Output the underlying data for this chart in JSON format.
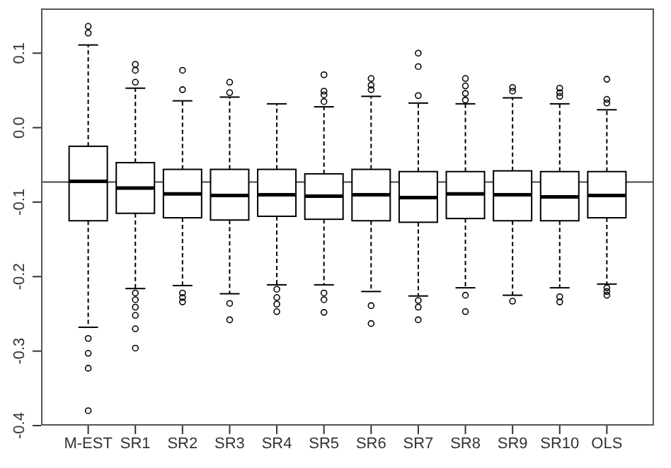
{
  "chart_data": {
    "type": "box",
    "categories": [
      "M-EST",
      "SR1",
      "SR2",
      "SR3",
      "SR4",
      "SR5",
      "SR6",
      "SR7",
      "SR8",
      "SR9",
      "SR10",
      "OLS"
    ],
    "ylim": [
      -0.4,
      0.16
    ],
    "yticks": [
      -0.4,
      -0.3,
      -0.2,
      -0.1,
      {
        "value": 0,
        "label": "0.0"
      },
      0.1
    ],
    "grid": false,
    "legend": false,
    "ref_lines": [
      {
        "axis": "y",
        "value": -0.073,
        "color": "#444444"
      }
    ],
    "series": [
      {
        "color": "#000000",
        "boxes": [
          {
            "low": -0.268,
            "q1": -0.125,
            "median": -0.072,
            "q3": -0.025,
            "high": 0.111,
            "outliers": [
              0.136,
              0.127,
              -0.283,
              -0.303,
              -0.323,
              -0.38
            ]
          },
          {
            "low": -0.216,
            "q1": -0.115,
            "median": -0.081,
            "q3": -0.047,
            "high": 0.053,
            "outliers": [
              0.085,
              0.077,
              0.061,
              -0.222,
              -0.231,
              -0.241,
              -0.252,
              -0.27,
              -0.296
            ]
          },
          {
            "low": -0.212,
            "q1": -0.121,
            "median": -0.089,
            "q3": -0.056,
            "high": 0.036,
            "outliers": [
              0.077,
              0.051,
              -0.222,
              -0.228,
              -0.234
            ]
          },
          {
            "low": -0.223,
            "q1": -0.124,
            "median": -0.091,
            "q3": -0.056,
            "high": 0.041,
            "outliers": [
              0.061,
              0.047,
              -0.236,
              -0.258
            ]
          },
          {
            "low": -0.211,
            "q1": -0.119,
            "median": -0.09,
            "q3": -0.056,
            "high": 0.032,
            "outliers": [
              -0.217,
              -0.228,
              -0.237,
              -0.247
            ]
          },
          {
            "low": -0.211,
            "q1": -0.123,
            "median": -0.092,
            "q3": -0.062,
            "high": 0.028,
            "outliers": [
              0.071,
              0.049,
              0.044,
              0.035,
              -0.222,
              -0.231,
              -0.248
            ]
          },
          {
            "low": -0.22,
            "q1": -0.125,
            "median": -0.09,
            "q3": -0.056,
            "high": 0.042,
            "outliers": [
              0.066,
              0.057,
              0.051,
              -0.239,
              -0.263
            ]
          },
          {
            "low": -0.226,
            "q1": -0.127,
            "median": -0.094,
            "q3": -0.059,
            "high": 0.033,
            "outliers": [
              0.1,
              0.082,
              0.043,
              -0.232,
              -0.241,
              -0.258
            ]
          },
          {
            "low": -0.215,
            "q1": -0.122,
            "median": -0.089,
            "q3": -0.059,
            "high": 0.032,
            "outliers": [
              0.066,
              0.056,
              0.046,
              0.037,
              -0.225,
              -0.247
            ]
          },
          {
            "low": -0.225,
            "q1": -0.125,
            "median": -0.09,
            "q3": -0.058,
            "high": 0.04,
            "outliers": [
              0.054,
              0.049,
              -0.233
            ]
          },
          {
            "low": -0.215,
            "q1": -0.125,
            "median": -0.093,
            "q3": -0.059,
            "high": 0.032,
            "outliers": [
              0.053,
              0.047,
              0.042,
              -0.227,
              -0.234
            ]
          },
          {
            "low": -0.21,
            "q1": -0.121,
            "median": -0.091,
            "q3": -0.059,
            "high": 0.024,
            "outliers": [
              0.065,
              0.038,
              0.033,
              -0.215,
              -0.22,
              -0.225
            ]
          }
        ]
      }
    ]
  }
}
